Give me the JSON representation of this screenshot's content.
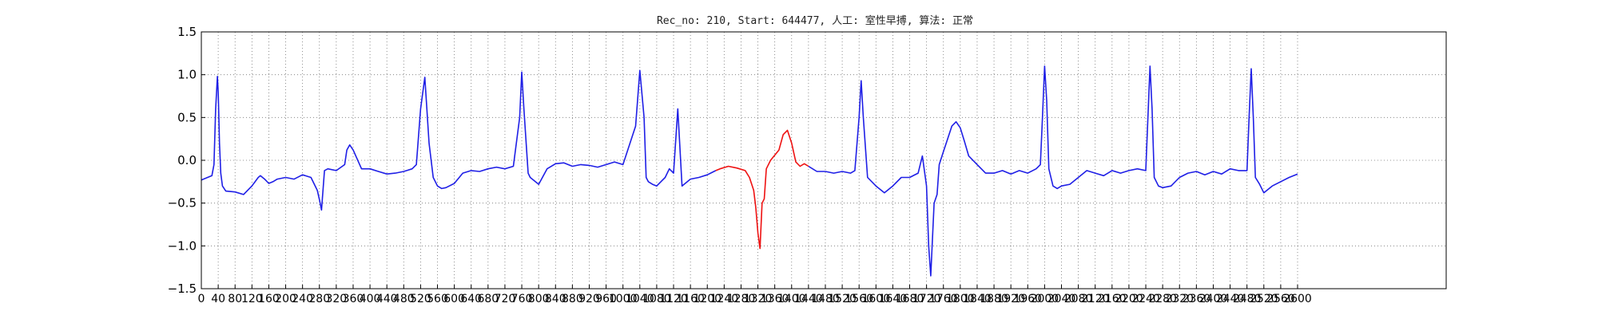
{
  "chart_data": {
    "type": "line",
    "title": "Rec_no: 210, Start: 644477, 人工: 室性早搏, 算法: 正常",
    "xlabel": "",
    "ylabel": "",
    "xlim": [
      0,
      2600
    ],
    "ylim": [
      -1.5,
      1.5
    ],
    "grid": true,
    "x_ticks": [
      0,
      40,
      80,
      120,
      160,
      200,
      240,
      280,
      320,
      360,
      400,
      440,
      480,
      520,
      560,
      600,
      640,
      680,
      720,
      760,
      800,
      840,
      880,
      920,
      960,
      1000,
      1040,
      1080,
      1120,
      1160,
      1200,
      1240,
      1280,
      1320,
      1360,
      1400,
      1440,
      1480,
      1520,
      1560,
      1600,
      1640,
      1680,
      1720,
      1760,
      1800,
      1840,
      1880,
      1920,
      1960,
      2000,
      2040,
      2080,
      2120,
      2160,
      2200,
      2240,
      2280,
      2320,
      2360,
      2400,
      2440,
      2480,
      2520,
      2560,
      2600
    ],
    "y_ticks": [
      -1.5,
      -1.0,
      -0.5,
      0.0,
      0.5,
      1.0,
      1.5
    ],
    "y_tick_labels": [
      "−1.5",
      "−1.0",
      "−0.5",
      "0.0",
      "0.5",
      "1.0",
      "1.5"
    ],
    "series": [
      {
        "color": "#1f1fe6",
        "x": [
          0,
          25,
          30,
          34,
          38,
          40,
          43,
          46,
          50,
          58,
          80,
          100,
          120,
          135,
          140,
          150,
          160,
          170,
          180,
          200,
          220,
          240,
          260,
          275,
          280,
          285,
          292,
          300,
          320,
          340,
          345,
          352,
          360,
          380,
          400,
          420,
          440,
          460,
          480,
          500,
          510,
          520,
          530,
          540,
          550,
          560,
          570,
          580,
          600,
          620,
          640,
          660,
          680,
          700,
          720,
          740,
          755,
          760,
          765,
          775,
          780,
          800,
          820,
          840,
          860,
          880,
          900,
          920,
          940,
          960,
          980,
          1000,
          1030,
          1040,
          1050,
          1055,
          1060,
          1070,
          1080,
          1090,
          1100,
          1110,
          1120,
          1130,
          1140,
          1160,
          1180,
          1200,
          1220
        ],
        "y": [
          -0.23,
          -0.18,
          -0.05,
          0.6,
          0.98,
          0.8,
          0.2,
          -0.15,
          -0.3,
          -0.36,
          -0.37,
          -0.4,
          -0.3,
          -0.2,
          -0.18,
          -0.22,
          -0.27,
          -0.25,
          -0.22,
          -0.2,
          -0.22,
          -0.17,
          -0.2,
          -0.35,
          -0.46,
          -0.58,
          -0.12,
          -0.1,
          -0.12,
          -0.05,
          0.12,
          0.18,
          0.12,
          -0.1,
          -0.1,
          -0.13,
          -0.16,
          -0.15,
          -0.13,
          -0.1,
          -0.05,
          0.6,
          0.97,
          0.2,
          -0.2,
          -0.3,
          -0.33,
          -0.32,
          -0.27,
          -0.15,
          -0.12,
          -0.13,
          -0.1,
          -0.08,
          -0.1,
          -0.07,
          0.5,
          1.03,
          0.6,
          -0.15,
          -0.2,
          -0.28,
          -0.1,
          -0.04,
          -0.03,
          -0.07,
          -0.05,
          -0.06,
          -0.08,
          -0.05,
          -0.02,
          -0.05,
          0.4,
          1.05,
          0.5,
          -0.2,
          -0.25,
          -0.28,
          -0.3,
          -0.25,
          -0.2,
          -0.1,
          -0.15,
          0.6,
          -0.3,
          -0.22,
          -0.2,
          -0.17,
          -0.12
        ]
      },
      {
        "color": "#ee1111",
        "x": [
          1220,
          1230,
          1250,
          1270,
          1290,
          1300,
          1310,
          1315,
          1320,
          1325,
          1330,
          1335,
          1340,
          1350,
          1370,
          1380,
          1390,
          1400,
          1410,
          1420,
          1430,
          1440
        ],
        "y": [
          -0.12,
          -0.1,
          -0.07,
          -0.09,
          -0.12,
          -0.2,
          -0.35,
          -0.55,
          -0.85,
          -1.03,
          -0.5,
          -0.45,
          -0.1,
          0.0,
          0.12,
          0.3,
          0.35,
          0.2,
          -0.02,
          -0.07,
          -0.04,
          -0.07
        ]
      },
      {
        "color": "#1f1fe6",
        "x": [
          1440,
          1460,
          1480,
          1500,
          1520,
          1540,
          1550,
          1560,
          1565,
          1570,
          1580,
          1600,
          1620,
          1640,
          1660,
          1680,
          1700,
          1710,
          1720,
          1725,
          1730,
          1738,
          1745,
          1750,
          1760,
          1770,
          1780,
          1790,
          1800,
          1810,
          1820,
          1840,
          1860,
          1880,
          1900,
          1920,
          1940,
          1960,
          1980,
          1990,
          1995,
          2000,
          2005,
          2010,
          2020,
          2030,
          2040,
          2060,
          2080,
          2100,
          2120,
          2140,
          2160,
          2180,
          2200,
          2220,
          2240,
          2245,
          2250,
          2255,
          2260,
          2270,
          2280,
          2300,
          2320,
          2340,
          2360,
          2380,
          2400,
          2420,
          2440,
          2460,
          2480,
          2485,
          2490,
          2495,
          2500,
          2510,
          2520,
          2540,
          2560,
          2580,
          2600
        ],
        "y": [
          -0.07,
          -0.13,
          -0.13,
          -0.15,
          -0.13,
          -0.15,
          -0.12,
          0.5,
          0.93,
          0.5,
          -0.2,
          -0.3,
          -0.38,
          -0.3,
          -0.2,
          -0.2,
          -0.15,
          0.05,
          -0.3,
          -1.0,
          -1.35,
          -0.5,
          -0.4,
          -0.05,
          0.1,
          0.25,
          0.4,
          0.45,
          0.38,
          0.22,
          0.05,
          -0.05,
          -0.15,
          -0.15,
          -0.12,
          -0.16,
          -0.12,
          -0.15,
          -0.1,
          -0.05,
          0.5,
          1.1,
          0.7,
          -0.1,
          -0.3,
          -0.33,
          -0.3,
          -0.28,
          -0.2,
          -0.12,
          -0.15,
          -0.18,
          -0.12,
          -0.15,
          -0.12,
          -0.1,
          -0.12,
          0.5,
          1.1,
          0.6,
          -0.2,
          -0.3,
          -0.32,
          -0.3,
          -0.2,
          -0.15,
          -0.13,
          -0.17,
          -0.13,
          -0.16,
          -0.1,
          -0.12,
          -0.12,
          0.5,
          1.07,
          0.5,
          -0.2,
          -0.28,
          -0.38,
          -0.3,
          -0.25,
          -0.2,
          -0.16
        ]
      }
    ]
  }
}
